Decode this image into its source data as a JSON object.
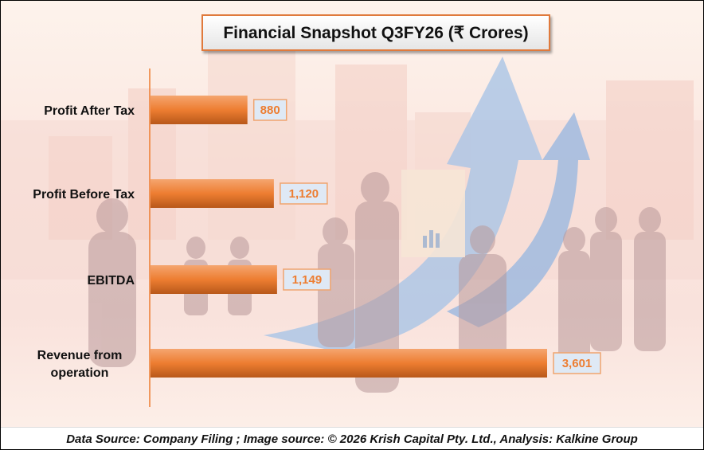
{
  "chart_data": {
    "type": "bar",
    "orientation": "horizontal",
    "title": "Financial Snapshot Q3FY26 (₹ Crores)",
    "categories": [
      "Profit After Tax",
      "Profit Before Tax",
      "EBITDA",
      "Revenue from operation"
    ],
    "values": [
      880,
      1120,
      1149,
      3601
    ],
    "value_labels": [
      "880",
      "1,120",
      "1,149",
      "3,601"
    ],
    "xlabel": "",
    "ylabel": "",
    "xlim": [
      0,
      3601
    ],
    "grid": false,
    "legend": "none",
    "bar_color": "#ed7d31",
    "label_color": "#ed7d31"
  },
  "footer": {
    "text": "Data Source: Company Filing ; Image source: © 2026 Krish Capital Pty. Ltd., Analysis: Kalkine Group"
  }
}
